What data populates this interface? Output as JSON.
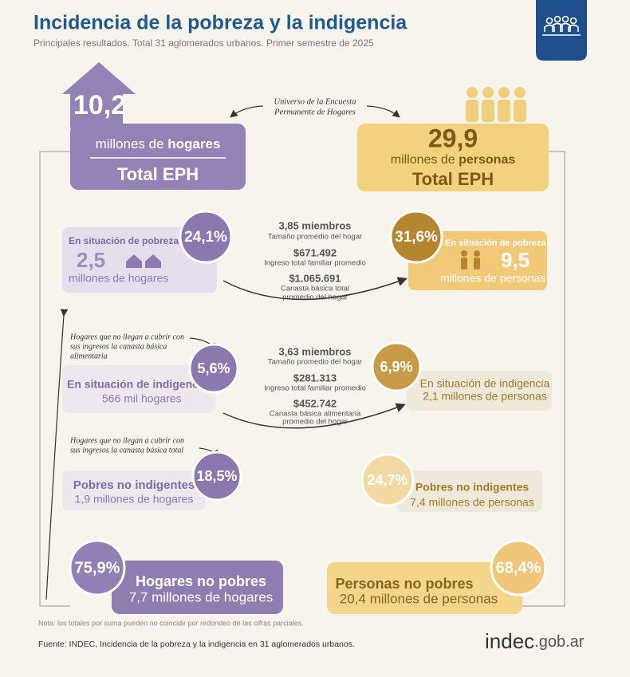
{
  "header": {
    "title": "Incidencia de la pobreza y la indigencia",
    "subtitle": "Principales resultados. Total 31 aglomerados urbanos. Primer semestre de 2025"
  },
  "universe": [
    "Universo de la Encuesta",
    "Permanente de Hogares"
  ],
  "households": {
    "value": "10,2",
    "unit_pre": "millones de ",
    "unit_bold": "hogares",
    "total": "Total EPH"
  },
  "persons": {
    "value": "29,9",
    "unit_pre": "millones de ",
    "unit_bold": "personas",
    "total": "Total EPH"
  },
  "poverty": {
    "hogares": {
      "label": "En situación de pobreza",
      "pct": "24,1%",
      "value": "2,5",
      "unit": "millones de hogares"
    },
    "personas": {
      "label": "En situación de pobreza",
      "pct": "31,6%",
      "value": "9,5",
      "unit": "millones de personas"
    },
    "stats": [
      {
        "value": "3,85 miembros",
        "label": [
          "Tamaño promedio del hogar"
        ]
      },
      {
        "value": "$671.492",
        "label": [
          "Ingreso total familiar promedio"
        ]
      },
      {
        "value": "$1.065.691",
        "label": [
          "Canasta básica total",
          "promedio del hogar"
        ]
      }
    ]
  },
  "indigence": {
    "note": [
      "Hogares que no llegan a cubrir con",
      "sus ingresos la canasta básica",
      "alimentaria"
    ],
    "hogares": {
      "label": "En situación de indigencia",
      "pct": "5,6%",
      "text": "566 mil hogares"
    },
    "personas": {
      "label": "En situación de indigencia",
      "pct": "6,9%",
      "text": "2,1 millones de personas"
    },
    "stats": [
      {
        "value": "3,63 miembros",
        "label": [
          "Tamaño promedio del hogar"
        ]
      },
      {
        "value": "$281.313",
        "label": [
          "Ingreso total familiar promedio"
        ]
      },
      {
        "value": "$452.742",
        "label": [
          "Canasta básica alimentaria",
          "promedio del hogar"
        ]
      }
    ]
  },
  "non_indigent_poor": {
    "note": [
      "Hogares que no llegan a cubrir con",
      "sus ingresos la canasta básica total"
    ],
    "hogares": {
      "label": "Pobres no indigentes",
      "pct": "18,5%",
      "text": "1,9 millones de hogares"
    },
    "personas": {
      "label": "Pobres no indigentes",
      "pct": "24,7%",
      "text": "7,4 millones de personas"
    }
  },
  "non_poor": {
    "hogares": {
      "label": "Hogares no pobres",
      "pct": "75,9%",
      "text": "7,7 millones de hogares"
    },
    "personas": {
      "label": "Personas no pobres",
      "pct": "68,4%",
      "text": "20,4 millones de personas"
    }
  },
  "footer": {
    "note": "Nota: los totales por suma pueden no coincidir por redondeo de las cifras parciales.",
    "source": "Fuente: INDEC, Incidencia de la pobreza y la indigencia en 31 aglomerados urbanos.",
    "logo_main": "indec",
    "logo_suffix": ".gob.ar"
  }
}
